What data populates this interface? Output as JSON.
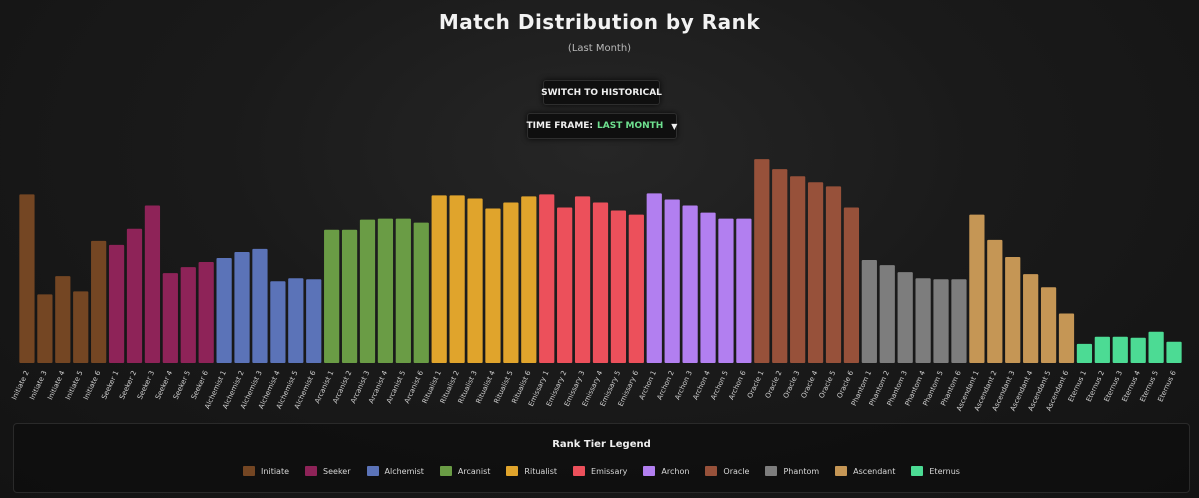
{
  "header": {
    "title": "Match Distribution by Rank",
    "subtitle": "(Last Month)"
  },
  "controls": {
    "switch_label": "SWITCH TO HISTORICAL",
    "timeframe_prefix": "TIME FRAME:",
    "timeframe_value": "LAST MONTH",
    "timeframe_caret": "▼"
  },
  "legend": {
    "title": "Rank Tier Legend",
    "items": [
      {
        "label": "Initiate",
        "color": "#744623"
      },
      {
        "label": "Seeker",
        "color": "#8e2358"
      },
      {
        "label": "Alchemist",
        "color": "#5b73b8"
      },
      {
        "label": "Arcanist",
        "color": "#6a9c45"
      },
      {
        "label": "Ritualist",
        "color": "#e0a42c"
      },
      {
        "label": "Emissary",
        "color": "#ec505b"
      },
      {
        "label": "Archon",
        "color": "#b27ff0"
      },
      {
        "label": "Oracle",
        "color": "#97513a"
      },
      {
        "label": "Phantom",
        "color": "#7d7d7d"
      },
      {
        "label": "Ascendant",
        "color": "#c59655"
      },
      {
        "label": "Eternus",
        "color": "#4cdb94"
      }
    ]
  },
  "chart_data": {
    "type": "bar",
    "title": "Match Distribution by Rank",
    "subtitle": "(Last Month)",
    "xlabel": "",
    "ylabel": "",
    "ylim": [
      0,
      210
    ],
    "grid": false,
    "categories": [
      "Initiate 2",
      "Initiate 3",
      "Initiate 4",
      "Initiate 5",
      "Initiate 6",
      "Seeker 1",
      "Seeker 2",
      "Seeker 3",
      "Seeker 4",
      "Seeker 5",
      "Seeker 6",
      "Alchemist 1",
      "Alchemist 2",
      "Alchemist 3",
      "Alchemist 4",
      "Alchemist 5",
      "Alchemist 6",
      "Arcanist 1",
      "Arcanist 2",
      "Arcanist 3",
      "Arcanist 4",
      "Arcanist 5",
      "Arcanist 6",
      "Ritualist 1",
      "Ritualist 2",
      "Ritualist 3",
      "Ritualist 4",
      "Ritualist 5",
      "Ritualist 6",
      "Emissary 1",
      "Emissary 2",
      "Emissary 3",
      "Emissary 4",
      "Emissary 5",
      "Emissary 6",
      "Archon 1",
      "Archon 2",
      "Archon 3",
      "Archon 4",
      "Archon 5",
      "Archon 6",
      "Oracle 1",
      "Oracle 2",
      "Oracle 3",
      "Oracle 4",
      "Oracle 5",
      "Oracle 6",
      "Phantom 1",
      "Phantom 2",
      "Phantom 3",
      "Phantom 4",
      "Phantom 5",
      "Phantom 6",
      "Ascendant 1",
      "Ascendant 2",
      "Ascendant 3",
      "Ascendant 4",
      "Ascendant 5",
      "Ascendant 6",
      "Eternus 1",
      "Eternus 2",
      "Eternus 3",
      "Eternus 4",
      "Eternus 5",
      "Eternus 6"
    ],
    "tiers": [
      "Initiate",
      "Initiate",
      "Initiate",
      "Initiate",
      "Initiate",
      "Seeker",
      "Seeker",
      "Seeker",
      "Seeker",
      "Seeker",
      "Seeker",
      "Alchemist",
      "Alchemist",
      "Alchemist",
      "Alchemist",
      "Alchemist",
      "Alchemist",
      "Arcanist",
      "Arcanist",
      "Arcanist",
      "Arcanist",
      "Arcanist",
      "Arcanist",
      "Ritualist",
      "Ritualist",
      "Ritualist",
      "Ritualist",
      "Ritualist",
      "Ritualist",
      "Emissary",
      "Emissary",
      "Emissary",
      "Emissary",
      "Emissary",
      "Emissary",
      "Archon",
      "Archon",
      "Archon",
      "Archon",
      "Archon",
      "Archon",
      "Oracle",
      "Oracle",
      "Oracle",
      "Oracle",
      "Oracle",
      "Oracle",
      "Phantom",
      "Phantom",
      "Phantom",
      "Phantom",
      "Phantom",
      "Phantom",
      "Ascendant",
      "Ascendant",
      "Ascendant",
      "Ascendant",
      "Ascendant",
      "Ascendant",
      "Eternus",
      "Eternus",
      "Eternus",
      "Eternus",
      "Eternus",
      "Eternus"
    ],
    "values": [
      167,
      68,
      86,
      71,
      121,
      117,
      133,
      156,
      89,
      95,
      100,
      104,
      110,
      113,
      81,
      84,
      83,
      132,
      132,
      142,
      143,
      143,
      139,
      166,
      166,
      163,
      153,
      159,
      165,
      167,
      154,
      165,
      159,
      151,
      147,
      168,
      162,
      156,
      149,
      143,
      143,
      202,
      192,
      185,
      179,
      175,
      154,
      102,
      97,
      90,
      84,
      83,
      83,
      147,
      122,
      105,
      88,
      75,
      49,
      19,
      26,
      26,
      25,
      31,
      21
    ]
  }
}
